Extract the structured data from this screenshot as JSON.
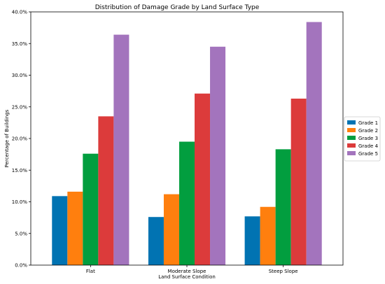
{
  "chart_data": {
    "type": "bar",
    "title": "Distribution of Damage Grade by Land Surface Type",
    "xlabel": "Land Surface Condition",
    "ylabel": "Percentage of Buildings",
    "categories": [
      "Flat",
      "Moderate Slope",
      "Steep Slope"
    ],
    "ylim": [
      0,
      40
    ],
    "yticks": [
      0,
      5,
      10,
      15,
      20,
      25,
      30,
      35,
      40
    ],
    "ytick_labels": [
      "0.0%",
      "5.0%",
      "10.0%",
      "15.0%",
      "20.0%",
      "25.0%",
      "30.0%",
      "35.0%",
      "40.0%"
    ],
    "legend_position": "center-right outside",
    "grid": false,
    "series": [
      {
        "name": "Grade 1",
        "color": "#0173b2",
        "values": [
          10.9,
          7.6,
          7.7
        ]
      },
      {
        "name": "Grade 2",
        "color": "#ff7f0e",
        "values": [
          11.6,
          11.2,
          9.2
        ]
      },
      {
        "name": "Grade 3",
        "color": "#029e3f",
        "values": [
          17.6,
          19.5,
          18.3
        ]
      },
      {
        "name": "Grade 4",
        "color": "#dc3b3b",
        "values": [
          23.5,
          27.1,
          26.3
        ]
      },
      {
        "name": "Grade 5",
        "color": "#a374bd",
        "values": [
          36.4,
          34.5,
          38.4
        ]
      }
    ]
  }
}
